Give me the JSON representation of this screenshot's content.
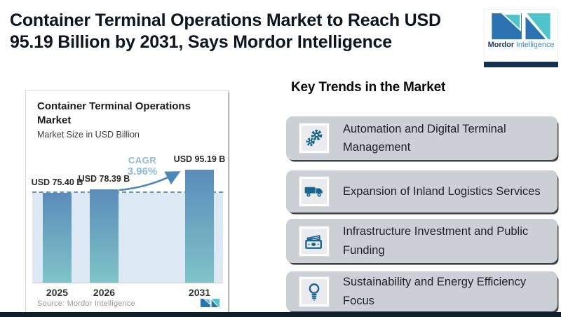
{
  "header": {
    "title": "Container Terminal Operations Market to Reach USD 95.19 Billion by 2031, Says Mordor Intelligence"
  },
  "brand": {
    "primary": "Mordor",
    "secondary": "Intelligence"
  },
  "chart_card": {
    "title": "Container Terminal Operations Market",
    "subtitle": "Market Size in USD Billion",
    "cagr_label": "CAGR",
    "cagr_value": "3.96%",
    "source": "Source: Mordor Intelligence"
  },
  "chart_data": {
    "type": "bar",
    "categories": [
      "2025",
      "2026",
      "2031"
    ],
    "values": [
      75.4,
      78.39,
      95.19
    ],
    "value_labels": [
      "USD 75.40 B",
      "USD 78.39 B",
      "USD 95.19 B"
    ],
    "title": "Container Terminal Operations Market",
    "ylabel": "Market Size in USD Billion",
    "ylim": [
      0,
      100
    ],
    "grid": false,
    "annotations": {
      "cagr": "3.96%",
      "dashed_reference_level": 75.4
    },
    "bar_gradient": [
      "#5a8cba",
      "#80c4c8"
    ]
  },
  "trends": {
    "heading": "Key Trends in the Market",
    "items": [
      {
        "icon": "gears-icon",
        "label": "Automation and Digital Terminal Management"
      },
      {
        "icon": "truck-icon",
        "label": "Expansion of Inland Logistics Services"
      },
      {
        "icon": "money-icon",
        "label": "Infrastructure Investment and Public Funding"
      },
      {
        "icon": "lightbulb-icon",
        "label": "Sustainability and Energy Efficiency Focus"
      }
    ]
  },
  "colors": {
    "accent_blue": "#2b72b0",
    "accent_teal": "#4fc4cd",
    "icon_blue": "#17648f",
    "band": "#dce8f3",
    "dashed_line": "#5f94c5",
    "cagr_text": "#8fb8da",
    "card_bg": "#cbcfd6",
    "footer_strip": "#101f2c"
  }
}
